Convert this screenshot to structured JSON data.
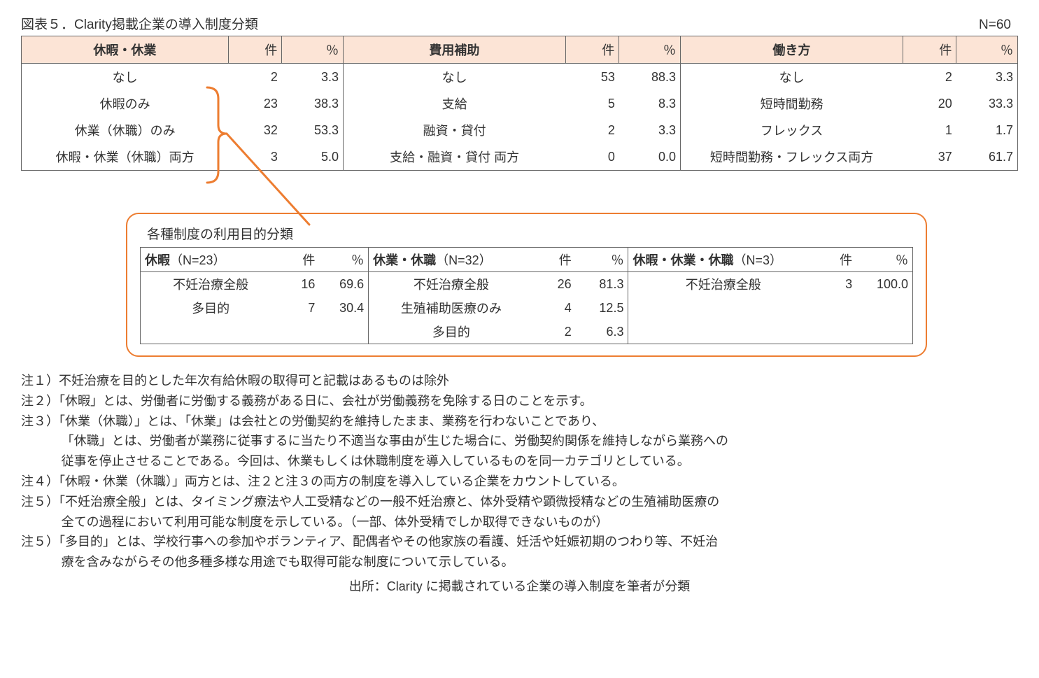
{
  "title": "図表５．Clarity掲載企業の導入制度分類",
  "n_label": "N=60",
  "colors": {
    "header_bg": "#fce4d6",
    "border": "#666666",
    "accent": "#ed7d31",
    "text": "#333333",
    "bg": "#ffffff"
  },
  "main": {
    "col_headers": {
      "count": "件",
      "pct": "％"
    },
    "sections": [
      {
        "title": "休暇・休業",
        "rows": [
          {
            "label": "なし",
            "count": "2",
            "pct": "3.3"
          },
          {
            "label": "休暇のみ",
            "count": "23",
            "pct": "38.3"
          },
          {
            "label": "休業（休職）のみ",
            "count": "32",
            "pct": "53.3"
          },
          {
            "label": "休暇・休業（休職）両方",
            "count": "3",
            "pct": "5.0"
          }
        ]
      },
      {
        "title": "費用補助",
        "rows": [
          {
            "label": "なし",
            "count": "53",
            "pct": "88.3"
          },
          {
            "label": "支給",
            "count": "5",
            "pct": "8.3"
          },
          {
            "label": "融資・貸付",
            "count": "2",
            "pct": "3.3"
          },
          {
            "label": "支給・融資・貸付 両方",
            "count": "0",
            "pct": "0.0"
          }
        ]
      },
      {
        "title": "働き方",
        "rows": [
          {
            "label": "なし",
            "count": "2",
            "pct": "3.3"
          },
          {
            "label": "短時間勤務",
            "count": "20",
            "pct": "33.3"
          },
          {
            "label": "フレックス",
            "count": "1",
            "pct": "1.7"
          },
          {
            "label": "短時間勤務・フレックス両方",
            "count": "37",
            "pct": "61.7"
          }
        ]
      }
    ]
  },
  "callout": {
    "title": "各種制度の利用目的分類",
    "col_headers": {
      "count": "件",
      "pct": "％"
    },
    "sections": [
      {
        "title": "休暇",
        "n": "（N=23）",
        "rows": [
          {
            "label": "不妊治療全般",
            "count": "16",
            "pct": "69.6"
          },
          {
            "label": "多目的",
            "count": "7",
            "pct": "30.4"
          }
        ]
      },
      {
        "title": "休業・休職",
        "n": "（N=32）",
        "rows": [
          {
            "label": "不妊治療全般",
            "count": "26",
            "pct": "81.3"
          },
          {
            "label": "生殖補助医療のみ",
            "count": "4",
            "pct": "12.5"
          },
          {
            "label": "多目的",
            "count": "2",
            "pct": "6.3"
          }
        ]
      },
      {
        "title": "休暇・休業・休職",
        "n": "（N=3）",
        "rows": [
          {
            "label": "不妊治療全般",
            "count": "3",
            "pct": "100.0"
          }
        ]
      }
    ]
  },
  "notes": [
    "注１）不妊治療を目的とした年次有給休暇の取得可と記載はあるものは除外",
    "注２）「休暇」とは、労働者に労働する義務がある日に、会社が労働義務を免除する日のことを示す。",
    "注３）「休業（休職）」とは、「休業」は会社との労働契約を維持したまま、業務を行わないことであり、",
    "「休職」とは、労働者が業務に従事するに当たり不適当な事由が生じた場合に、労働契約関係を維持しながら業務への",
    "従事を停止させることである。今回は、休業もしくは休職制度を導入しているものを同一カテゴリとしている。",
    "注４）「休暇・休業（休職）」両方とは、注２と注３の両方の制度を導入している企業をカウントしている。",
    "注５）「不妊治療全般」とは、タイミング療法や人工受精などの一般不妊治療と、体外受精や顕微授精などの生殖補助医療の",
    "全ての過程において利用可能な制度を示している。（一部、体外受精でしか取得できないものが）",
    "注５）「多目的」とは、学校行事への参加やボランティア、配偶者やその他家族の看護、妊活や妊娠初期のつわり等、不妊治",
    "療を含みながらその他多種多様な用途でも取得可能な制度について示している。"
  ],
  "notes_is_cont": [
    false,
    false,
    false,
    true,
    true,
    false,
    false,
    true,
    false,
    true
  ],
  "source": "出所：Clarity に掲載されている企業の導入制度を筆者が分類"
}
